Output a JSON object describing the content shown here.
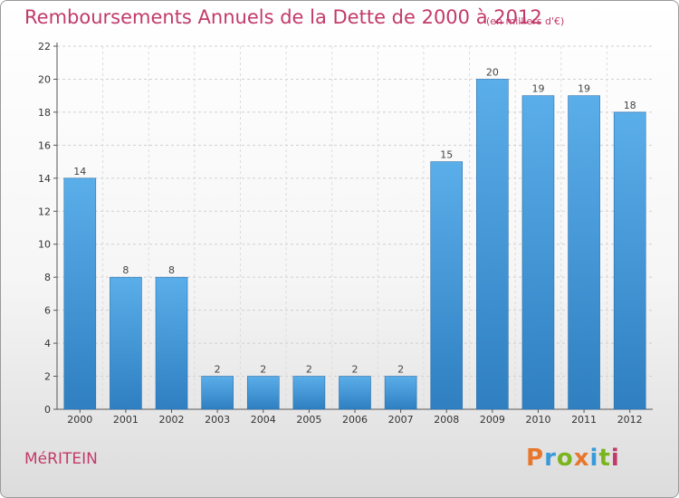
{
  "title": "Remboursements Annuels de la Dette de 2000 à 2012",
  "subtitle": "(en milliers d'€)",
  "commune": "MéRITEIN",
  "brand": {
    "text": "Proxiti",
    "colors": [
      "#e8772e",
      "#3a9ad9",
      "#7ab51d",
      "#e8772e",
      "#3a9ad9",
      "#7ab51d",
      "#c23a6a"
    ]
  },
  "colors": {
    "bar_light": "#5aaee9",
    "bar_dark": "#2f7fc1",
    "title": "#c23a6a"
  },
  "chart_data": {
    "type": "bar",
    "title": "Remboursements Annuels de la Dette de 2000 à 2012",
    "subtitle": "(en milliers d'€)",
    "categories": [
      "2000",
      "2001",
      "2002",
      "2003",
      "2004",
      "2005",
      "2006",
      "2007",
      "2008",
      "2009",
      "2010",
      "2011",
      "2012"
    ],
    "values": [
      14,
      8,
      8,
      2,
      2,
      2,
      2,
      2,
      15,
      20,
      19,
      19,
      18
    ],
    "ylim": [
      0,
      22
    ],
    "yticks": [
      0,
      2,
      4,
      6,
      8,
      10,
      12,
      14,
      16,
      18,
      20,
      22
    ],
    "xlabel": "",
    "ylabel": "",
    "grid": true,
    "data_labels": true
  }
}
